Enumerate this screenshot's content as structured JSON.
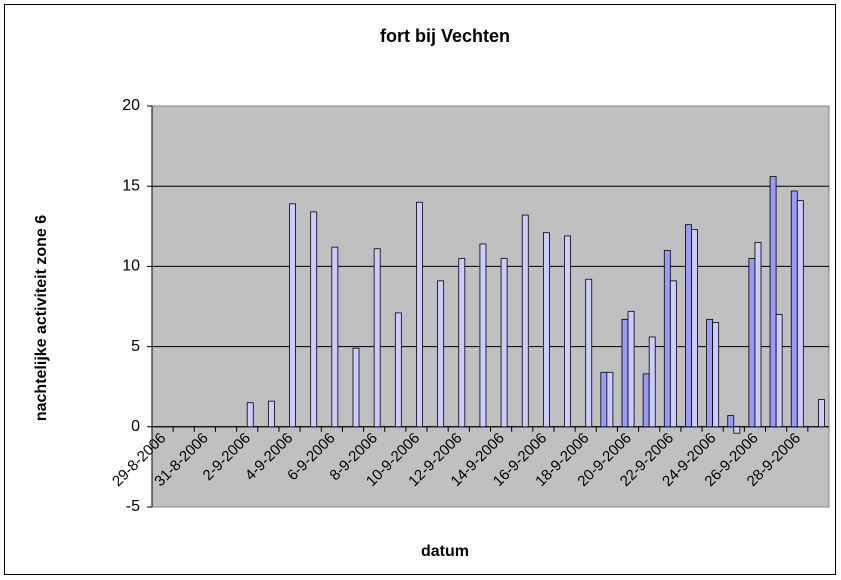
{
  "chart_data": {
    "type": "bar",
    "title": "fort bij Vechten",
    "x_label": "datum",
    "y_label": "nachtelijke activiteit zone 6",
    "categories": [
      "29-8-2006",
      null,
      "31-8-2006",
      null,
      "2-9-2006",
      null,
      "4-9-2006",
      null,
      "6-9-2006",
      null,
      "8-9-2006",
      null,
      "10-9-2006",
      null,
      "12-9-2006",
      null,
      "14-9-2006",
      null,
      "16-9-2006",
      null,
      "18-9-2006",
      null,
      "20-9-2006",
      null,
      "22-9-2006",
      null,
      "24-9-2006",
      null,
      "26-9-2006",
      null,
      "28-9-2006",
      null
    ],
    "series": [
      {
        "color": "#9999ff",
        "values": [
          null,
          null,
          null,
          null,
          null,
          null,
          null,
          null,
          null,
          null,
          null,
          null,
          null,
          null,
          null,
          null,
          null,
          null,
          null,
          null,
          null,
          3.4,
          6.7,
          3.3,
          11.0,
          12.6,
          6.7,
          0.7,
          10.5,
          15.6,
          14.7,
          null
        ]
      },
      {
        "color": "#ccccff",
        "values": [
          null,
          null,
          null,
          null,
          1.5,
          1.6,
          13.9,
          13.4,
          11.2,
          4.9,
          11.1,
          7.1,
          14.0,
          9.1,
          10.5,
          11.4,
          10.5,
          13.2,
          12.1,
          11.9,
          9.2,
          3.4,
          7.2,
          5.6,
          9.1,
          12.3,
          6.5,
          -0.4,
          11.5,
          7.0,
          14.1,
          1.7
        ]
      }
    ],
    "ylim": [
      -5,
      20
    ],
    "yticks": [
      -5,
      0,
      5,
      10,
      15,
      20
    ],
    "grid": true,
    "plot_background": "#c0c0c0"
  }
}
